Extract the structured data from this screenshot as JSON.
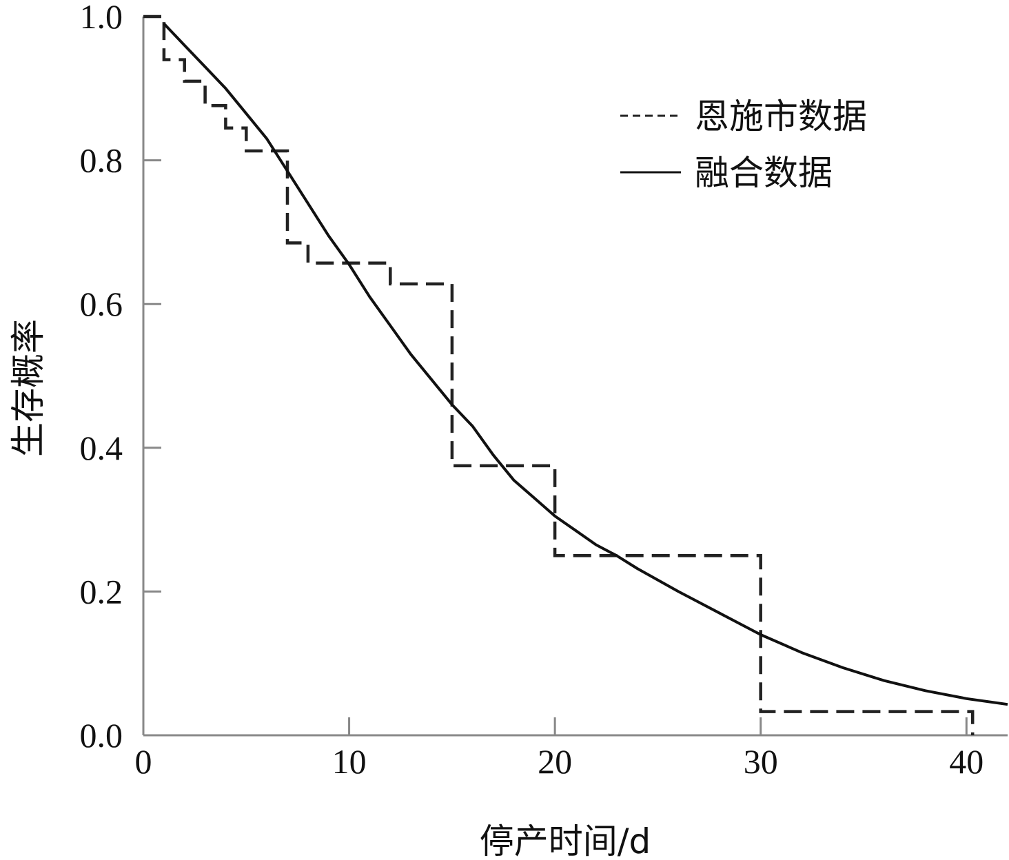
{
  "chart_data": {
    "type": "line",
    "title": "",
    "xlabel": "停产时间/d",
    "ylabel": "生存概率",
    "xlim": [
      0,
      42
    ],
    "ylim": [
      0,
      1.0
    ],
    "xticks": [
      0,
      10,
      20,
      30,
      40
    ],
    "xtick_labels": [
      "0",
      "10",
      "20",
      "30",
      "40"
    ],
    "yticks": [
      0.0,
      0.2,
      0.4,
      0.6,
      0.8,
      1.0
    ],
    "ytick_labels": [
      "0.0",
      "0.2",
      "0.4",
      "0.6",
      "0.8",
      "1.0"
    ],
    "grid": false,
    "legend_position": "top-right",
    "series": [
      {
        "name": "恩施市数据",
        "style": "dashed-step",
        "color": "#222222",
        "points": [
          [
            0,
            1.0
          ],
          [
            1,
            1.0
          ],
          [
            1,
            0.94
          ],
          [
            2,
            0.94
          ],
          [
            2,
            0.91
          ],
          [
            3,
            0.91
          ],
          [
            3,
            0.876
          ],
          [
            4,
            0.876
          ],
          [
            4,
            0.845
          ],
          [
            5,
            0.845
          ],
          [
            5,
            0.813
          ],
          [
            7,
            0.813
          ],
          [
            7,
            0.685
          ],
          [
            8,
            0.685
          ],
          [
            8,
            0.657
          ],
          [
            12,
            0.657
          ],
          [
            12,
            0.628
          ],
          [
            15,
            0.628
          ],
          [
            15,
            0.375
          ],
          [
            20,
            0.375
          ],
          [
            20,
            0.25
          ],
          [
            30,
            0.25
          ],
          [
            30,
            0.033
          ],
          [
            40.3,
            0.033
          ],
          [
            40.3,
            0.0
          ]
        ]
      },
      {
        "name": "融合数据",
        "style": "solid",
        "color": "#111111",
        "points": [
          [
            1,
            0.99
          ],
          [
            2,
            0.96
          ],
          [
            3,
            0.93
          ],
          [
            4,
            0.9
          ],
          [
            5,
            0.865
          ],
          [
            6,
            0.83
          ],
          [
            7,
            0.785
          ],
          [
            8,
            0.74
          ],
          [
            9,
            0.695
          ],
          [
            10,
            0.655
          ],
          [
            11,
            0.61
          ],
          [
            12,
            0.57
          ],
          [
            13,
            0.53
          ],
          [
            14,
            0.495
          ],
          [
            15,
            0.46
          ],
          [
            16,
            0.43
          ],
          [
            17,
            0.39
          ],
          [
            18,
            0.355
          ],
          [
            19,
            0.33
          ],
          [
            20,
            0.305
          ],
          [
            21,
            0.285
          ],
          [
            22,
            0.265
          ],
          [
            23,
            0.25
          ],
          [
            24,
            0.232
          ],
          [
            26,
            0.2
          ],
          [
            28,
            0.17
          ],
          [
            30,
            0.14
          ],
          [
            32,
            0.115
          ],
          [
            34,
            0.094
          ],
          [
            36,
            0.076
          ],
          [
            38,
            0.062
          ],
          [
            40,
            0.051
          ],
          [
            42,
            0.043
          ]
        ]
      }
    ]
  }
}
